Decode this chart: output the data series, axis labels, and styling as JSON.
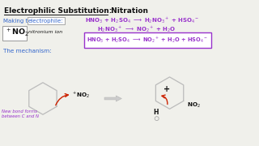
{
  "title_part1": "Electrophilic Substitution:",
  "title_part2": " Nitration",
  "bg_color": "#f0f0eb",
  "purple": "#9933cc",
  "blue_label": "#3366cc",
  "red": "#cc2200",
  "black": "#111111",
  "gray": "#aaaaaa",
  "nitronium_label": "nitronium ion",
  "mechanism_label": "The mechanism:",
  "new_bond_label": "New bond forms\nbetween C and N"
}
